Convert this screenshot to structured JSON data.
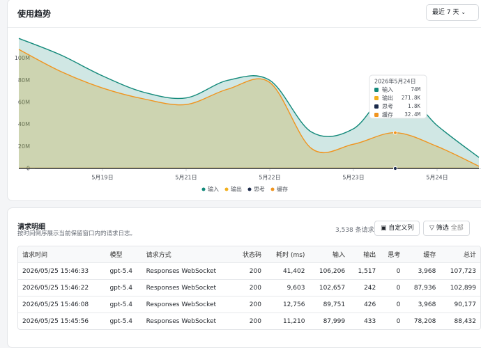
{
  "header": {
    "title": "使用趋势",
    "range": "最近 7 天"
  },
  "chart_data": {
    "type": "area",
    "categories": [
      null,
      null,
      "5月19日",
      null,
      "5月21日",
      null,
      "5月22日",
      null,
      "5月23日",
      null,
      "5月24日",
      null
    ],
    "series": [
      {
        "name": "输入",
        "color": "#12897a",
        "values": [
          118,
          103,
          84,
          69,
          64,
          80,
          80,
          33,
          36,
          74,
          39,
          10
        ]
      },
      {
        "name": "输出",
        "color": "#f2b01e",
        "values": [
          0.3,
          0.3,
          0.3,
          0.3,
          0.3,
          0.3,
          0.3,
          0.3,
          0.3,
          0.2718,
          0.3,
          0.2
        ]
      },
      {
        "name": "思考",
        "color": "#1b2a4a",
        "values": [
          0.002,
          0.002,
          0.002,
          0.002,
          0.002,
          0.002,
          0.002,
          0.002,
          0.002,
          0.0018,
          0.002,
          0.002
        ]
      },
      {
        "name": "缓存",
        "color": "#f0941e",
        "values": [
          108,
          88,
          73,
          63,
          58,
          72,
          78,
          18,
          22,
          32.4,
          20,
          2
        ]
      }
    ],
    "ylim": [
      0,
      120
    ],
    "yticks": [
      0,
      {
        "value": 20,
        "label": "20M"
      },
      {
        "value": 40,
        "label": "40M"
      },
      {
        "value": 60,
        "label": "60M"
      },
      {
        "value": 80,
        "label": "80M"
      },
      {
        "value": 100,
        "label": "100M"
      }
    ],
    "grid": false,
    "tooltip": {
      "date": "2026年5月24日",
      "values": [
        74,
        0.2718,
        0.0018,
        32.4
      ],
      "value_labels": [
        "74M",
        "271.8K",
        "1.8K",
        "32.4M"
      ]
    }
  },
  "requests": {
    "title": "请求明细",
    "subtitle": "按时间倒序展示当前保留窗口内的请求日志。",
    "count": "3,538 条请求",
    "columns_button": "自定义列",
    "filter_button": "筛选",
    "filter_value": "全部",
    "table": {
      "headers": [
        "请求时间",
        "模型",
        "请求方式",
        "状态码",
        "耗时 (ms)",
        "输入",
        "输出",
        "思考",
        "缓存",
        "总计"
      ],
      "rows": [
        [
          "2026/05/25 15:46:33",
          "gpt-5.4",
          "Responses WebSocket",
          "200",
          "41,402",
          "106,206",
          "1,517",
          "0",
          "3,968",
          "107,723"
        ],
        [
          "2026/05/25 15:46:22",
          "gpt-5.4",
          "Responses WebSocket",
          "200",
          "9,603",
          "102,657",
          "242",
          "0",
          "87,936",
          "102,899"
        ],
        [
          "2026/05/25 15:46:08",
          "gpt-5.4",
          "Responses WebSocket",
          "200",
          "12,756",
          "89,751",
          "426",
          "0",
          "3,968",
          "90,177"
        ],
        [
          "2026/05/25 15:45:56",
          "gpt-5.4",
          "Responses WebSocket",
          "200",
          "11,210",
          "87,999",
          "433",
          "0",
          "78,208",
          "88,432"
        ]
      ]
    }
  }
}
